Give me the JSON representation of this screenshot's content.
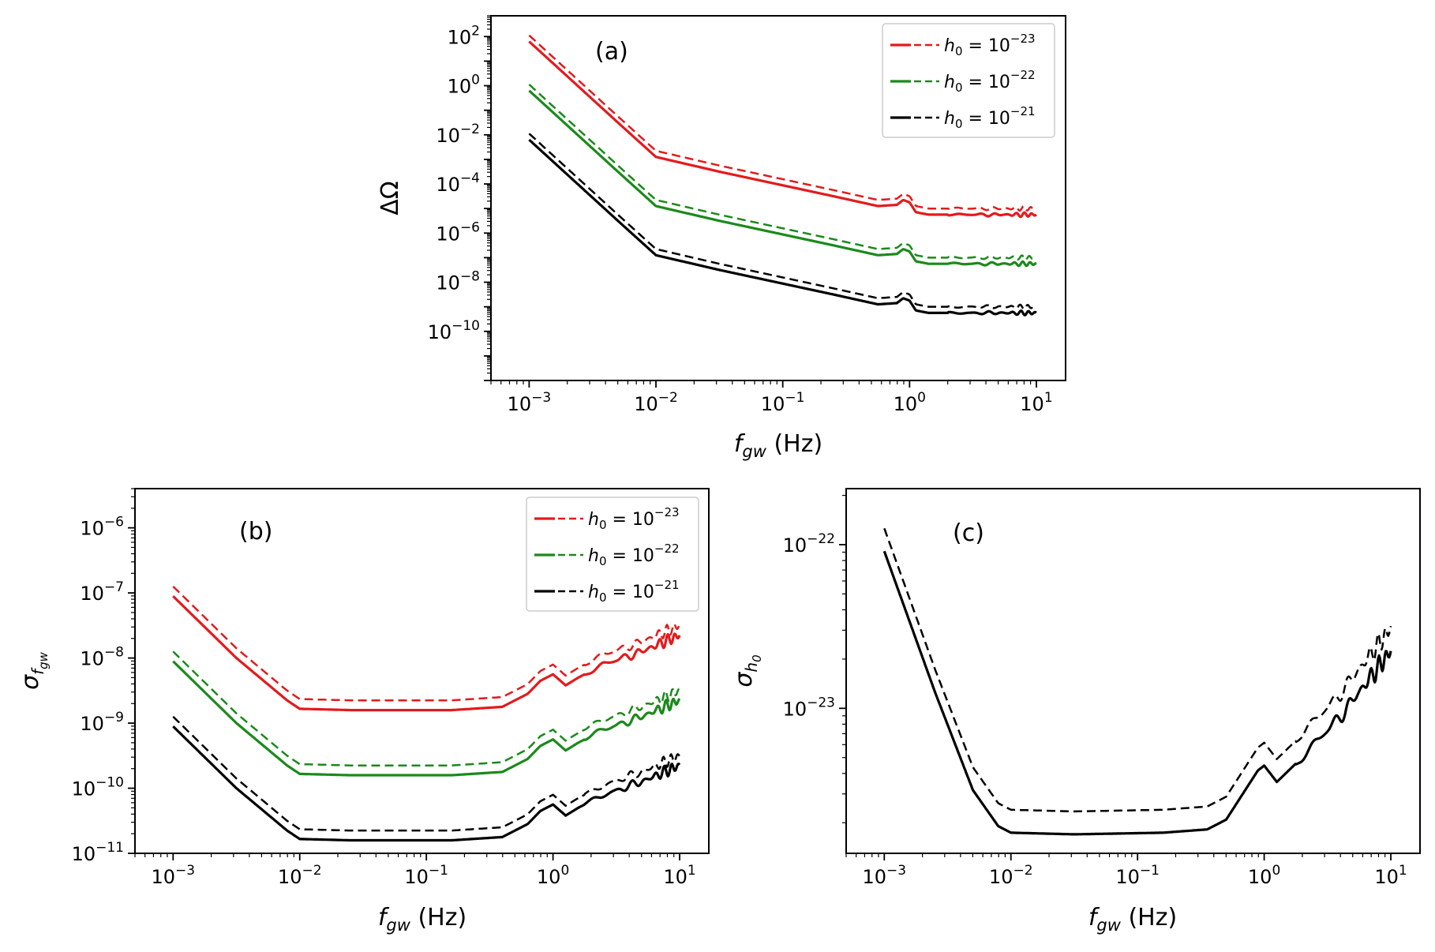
{
  "figure_title": "",
  "colors": {
    "red": "#e41a1c",
    "green": "#1a8a1a",
    "black": "#000000"
  },
  "chart_data": [
    {
      "type": "line",
      "panel": "(a)",
      "xscale": "log",
      "yscale": "log",
      "xlabel": "f_gw (Hz)",
      "ylabel": "ΔΩ",
      "xlim": [
        0.0005,
        17
      ],
      "ylim": [
        1e-12,
        700
      ],
      "x_ticks": [
        -3,
        -2,
        -1,
        0,
        1
      ],
      "y_ticks": [
        2,
        0,
        -2,
        -4,
        -6,
        -8,
        -10
      ],
      "legend": {
        "placement": "top-right",
        "entries": [
          {
            "label_base": "h0 = 10",
            "exp": "−23",
            "color": "red"
          },
          {
            "label_base": "h0 = 10",
            "exp": "−22",
            "color": "green"
          },
          {
            "label_base": "h0 = 10",
            "exp": "−21",
            "color": "black"
          }
        ]
      },
      "shape": {
        "nodes": [
          [
            -3,
            0
          ],
          [
            -2.3,
            -3.3
          ],
          [
            -2.0,
            -4.7
          ],
          [
            -1.5,
            -5.3
          ],
          [
            -0.6,
            -6.3
          ],
          [
            -0.25,
            -6.7
          ],
          [
            -0.1,
            -6.65
          ],
          [
            -0.05,
            -6.45
          ],
          [
            0,
            -6.55
          ],
          [
            0.05,
            -6.95
          ],
          [
            0.15,
            -7.05
          ],
          [
            0.3,
            -7.05
          ],
          [
            0.45,
            -7.05
          ],
          [
            1,
            -7.05
          ]
        ],
        "wiggle_amp": 0.07,
        "wiggle_start": 0.3
      },
      "series": [
        {
          "name": "h0=1e-23 solid",
          "color": "red",
          "style": "solid",
          "offset": 1.8
        },
        {
          "name": "h0=1e-23 dashed",
          "color": "red",
          "style": "dashed",
          "offset": 2.05
        },
        {
          "name": "h0=1e-22 solid",
          "color": "green",
          "style": "solid",
          "offset": -0.2
        },
        {
          "name": "h0=1e-22 dashed",
          "color": "green",
          "style": "dashed",
          "offset": 0.05
        },
        {
          "name": "h0=1e-21 solid",
          "color": "black",
          "style": "solid",
          "offset": -2.2
        },
        {
          "name": "h0=1e-21 dashed",
          "color": "black",
          "style": "dashed",
          "offset": -1.95
        }
      ]
    },
    {
      "type": "line",
      "panel": "(b)",
      "xscale": "log",
      "yscale": "log",
      "xlabel": "f_gw (Hz)",
      "ylabel": "σ_fgw",
      "xlim": [
        0.0005,
        17
      ],
      "ylim": [
        1e-11,
        4e-06
      ],
      "x_ticks": [
        -3,
        -2,
        -1,
        0,
        1
      ],
      "y_ticks": [
        -6,
        -7,
        -8,
        -9,
        -10,
        -11
      ],
      "legend": {
        "placement": "top-right",
        "entries": [
          {
            "label_base": "h0 = 10",
            "exp": "−23",
            "color": "red"
          },
          {
            "label_base": "h0 = 10",
            "exp": "−22",
            "color": "green"
          },
          {
            "label_base": "h0 = 10",
            "exp": "−21",
            "color": "black"
          }
        ]
      },
      "shape": {
        "nodes": [
          [
            -3,
            -7.05
          ],
          [
            -2.5,
            -8.0
          ],
          [
            -2.1,
            -8.65
          ],
          [
            -2.0,
            -8.78
          ],
          [
            -1.6,
            -8.8
          ],
          [
            -0.8,
            -8.8
          ],
          [
            -0.4,
            -8.75
          ],
          [
            -0.2,
            -8.55
          ],
          [
            -0.1,
            -8.35
          ],
          [
            0,
            -8.25
          ],
          [
            0.1,
            -8.42
          ],
          [
            0.2,
            -8.3
          ],
          [
            0.4,
            -8.1
          ],
          [
            0.7,
            -7.9
          ],
          [
            1,
            -7.65
          ]
        ],
        "wiggle_amp": 0.07,
        "wiggle_start": 0.25
      },
      "series": [
        {
          "name": "h0=1e-23 solid",
          "color": "red",
          "style": "solid",
          "offset": 0.0
        },
        {
          "name": "h0=1e-23 dashed",
          "color": "red",
          "style": "dashed",
          "offset": 0.15
        },
        {
          "name": "h0=1e-22 solid",
          "color": "green",
          "style": "solid",
          "offset": -1.0
        },
        {
          "name": "h0=1e-22 dashed",
          "color": "green",
          "style": "dashed",
          "offset": -0.85
        },
        {
          "name": "h0=1e-21 solid",
          "color": "black",
          "style": "solid",
          "offset": -2.0
        },
        {
          "name": "h0=1e-21 dashed",
          "color": "black",
          "style": "dashed",
          "offset": -1.85
        }
      ]
    },
    {
      "type": "line",
      "panel": "(c)",
      "xscale": "log",
      "yscale": "log",
      "xlabel": "f_gw (Hz)",
      "ylabel": "σ_h0",
      "xlim": [
        0.0005,
        17
      ],
      "ylim": [
        1.3e-24,
        2.2e-22
      ],
      "x_ticks": [
        -3,
        -2,
        -1,
        0,
        1
      ],
      "y_ticks": [
        -22,
        -23
      ],
      "legend": null,
      "shape": {
        "nodes": [
          [
            -3,
            -22.04
          ],
          [
            -2.6,
            -22.9
          ],
          [
            -2.3,
            -23.5
          ],
          [
            -2.1,
            -23.72
          ],
          [
            -2.0,
            -23.76
          ],
          [
            -1.5,
            -23.77
          ],
          [
            -0.8,
            -23.76
          ],
          [
            -0.45,
            -23.74
          ],
          [
            -0.3,
            -23.68
          ],
          [
            -0.15,
            -23.5
          ],
          [
            -0.05,
            -23.38
          ],
          [
            0,
            -23.35
          ],
          [
            0.1,
            -23.45
          ],
          [
            0.3,
            -23.3
          ],
          [
            0.6,
            -23.05
          ],
          [
            1,
            -22.65
          ]
        ],
        "wiggle_amp": 0.05,
        "wiggle_start": 0.25
      },
      "series": [
        {
          "name": "solid",
          "color": "black",
          "style": "solid",
          "offset": 0.0
        },
        {
          "name": "dashed",
          "color": "black",
          "style": "dashed",
          "offset": 0.14
        }
      ]
    }
  ],
  "panels": {
    "a": {
      "tag": "(a)",
      "xlabel_sym": "f",
      "xlabel_sub": "gw",
      "xlabel_unit": " (Hz)",
      "ylabel_text": "ΔΩ"
    },
    "b": {
      "tag": "(b)",
      "xlabel_sym": "f",
      "xlabel_sub": "gw",
      "xlabel_unit": " (Hz)",
      "ylabel_sym": "σ",
      "ylabel_sub": "f",
      "ylabel_subsub": "gw"
    },
    "c": {
      "tag": "(c)",
      "xlabel_sym": "f",
      "xlabel_sub": "gw",
      "xlabel_unit": " (Hz)",
      "ylabel_sym": "σ",
      "ylabel_sub": "h",
      "ylabel_subsub": "0"
    }
  },
  "tick_base": "10",
  "legend_label": {
    "sym": "h",
    "sub": "0",
    "mid": " = 10"
  }
}
